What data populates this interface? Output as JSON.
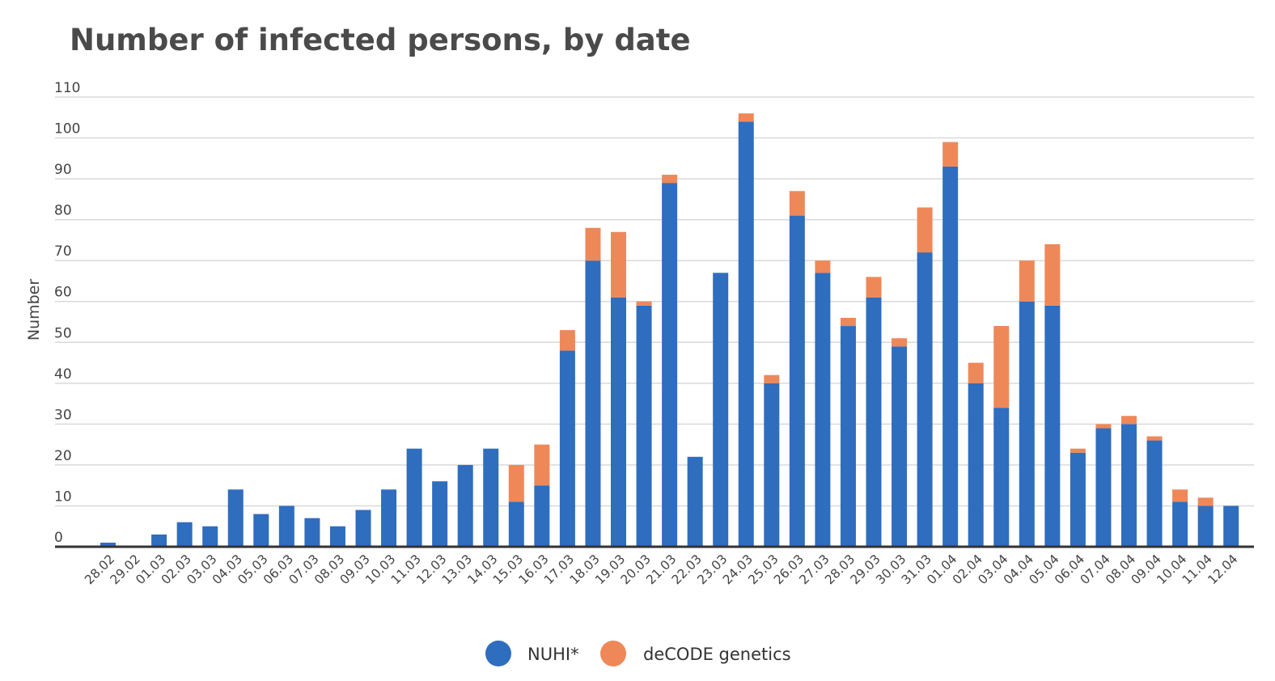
{
  "chart_data": {
    "type": "bar",
    "stacked": true,
    "title": "Number of infected persons, by date",
    "xlabel": "",
    "ylabel": "Number",
    "ylim": [
      0,
      110
    ],
    "yticks": [
      0,
      10,
      20,
      30,
      40,
      50,
      60,
      70,
      80,
      90,
      100,
      110
    ],
    "grid": true,
    "legend_position": "bottom",
    "categories": [
      "28.02",
      "29.02",
      "01.03",
      "02.03",
      "03.03",
      "04.03",
      "05.03",
      "06.03",
      "07.03",
      "08.03",
      "09.03",
      "10.03",
      "11.03",
      "12.03",
      "13.03",
      "14.03",
      "15.03",
      "16.03",
      "17.03",
      "18.03",
      "19.03",
      "20.03",
      "21.03",
      "22.03",
      "23.03",
      "24.03",
      "25.03",
      "26.03",
      "27.03",
      "28.03",
      "29.03",
      "30.03",
      "31.03",
      "01.04",
      "02.04",
      "03.04",
      "04.04",
      "05.04",
      "06.04",
      "07.04",
      "08.04",
      "09.04",
      "10.04",
      "11.04",
      "12.04"
    ],
    "series": [
      {
        "name": "NUHI*",
        "color": "#2f6dbf",
        "values": [
          1,
          0,
          3,
          6,
          5,
          14,
          8,
          10,
          7,
          5,
          9,
          14,
          24,
          16,
          20,
          24,
          11,
          15,
          48,
          70,
          61,
          59,
          89,
          22,
          67,
          104,
          40,
          81,
          67,
          54,
          61,
          49,
          72,
          93,
          40,
          34,
          60,
          59,
          23,
          29,
          30,
          26,
          11,
          10,
          10
        ]
      },
      {
        "name": "deCODE genetics",
        "color": "#ee8859",
        "values": [
          0,
          0,
          0,
          0,
          0,
          0,
          0,
          0,
          0,
          0,
          0,
          0,
          0,
          0,
          0,
          0,
          9,
          10,
          5,
          8,
          16,
          1,
          2,
          0,
          0,
          2,
          2,
          6,
          3,
          2,
          5,
          2,
          11,
          6,
          5,
          20,
          10,
          15,
          1,
          1,
          2,
          1,
          3,
          2,
          0
        ]
      }
    ]
  }
}
